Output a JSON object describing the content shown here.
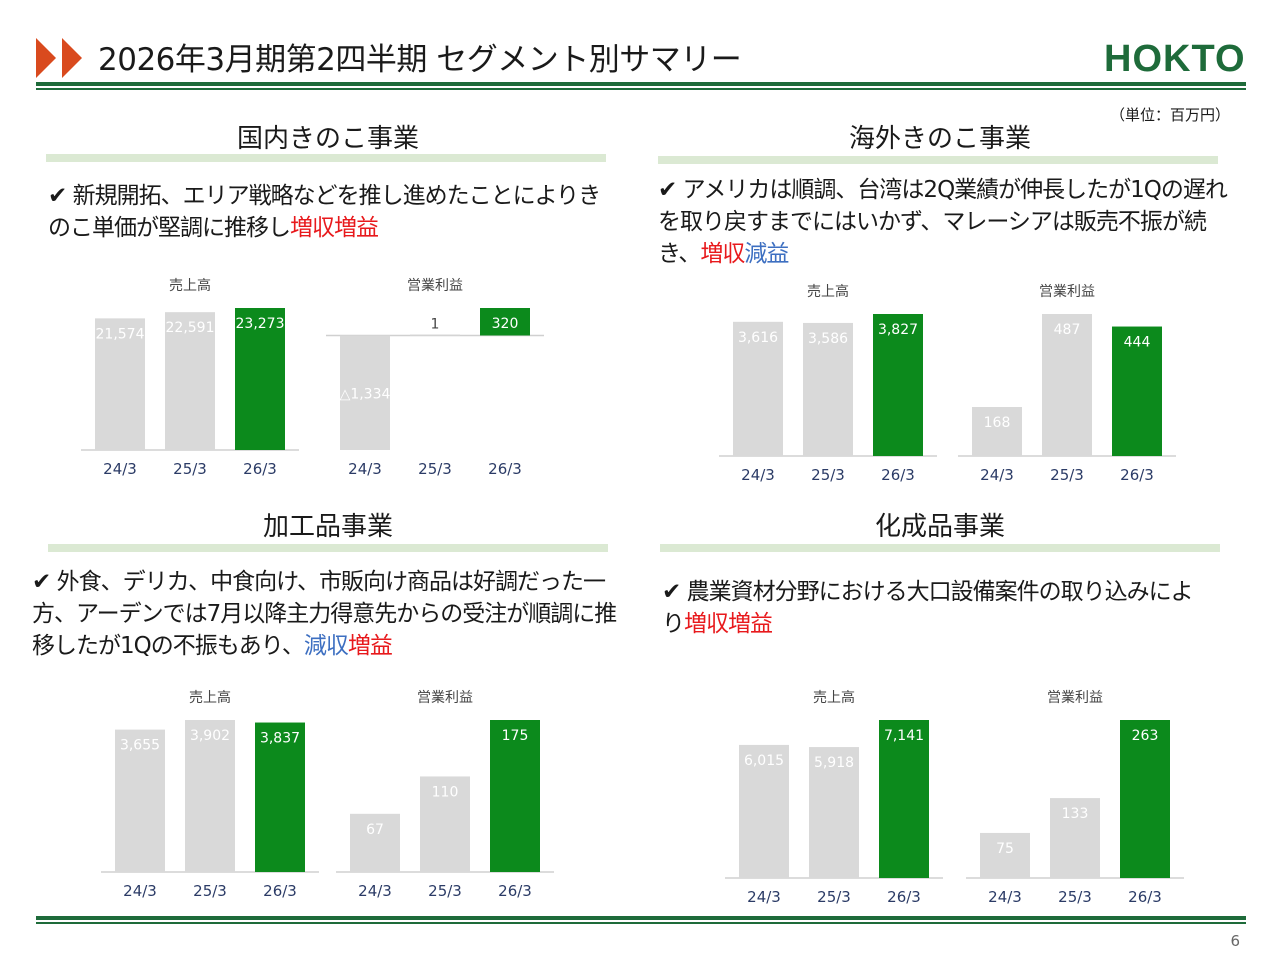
{
  "header": {
    "title": "2026年3月期第2四半期 セグメント別サマリー",
    "logo": "HOKTO",
    "unit": "（単位：百万円）",
    "page_number": "6"
  },
  "colors": {
    "accent_red": "#d94a1e",
    "brand_green": "#1e6b3a",
    "bar_highlight": "#0c8a1c",
    "bar_past": "#d9d9d9",
    "underline": "#dbe9d3",
    "text_red": "#e8191c",
    "text_blue": "#3d6fc1"
  },
  "segments": {
    "domestic": {
      "title": "国内きのこ事業",
      "desc_lead": "✔ 新規開拓、エリア戦略などを推し進めたことによりきのこ単価が堅調に推移し",
      "desc_a": "増収",
      "desc_b": "増益",
      "desc_tail": ""
    },
    "overseas": {
      "title": "海外きのこ事業",
      "desc_lead": "✔ アメリカは順調、台湾は2Q業績が伸長したが1Qの遅れを取り戻すまでにはいかず、マレーシアは販売不振が続き、",
      "desc_a": "増収",
      "desc_b": "減益",
      "desc_tail": ""
    },
    "processed": {
      "title": "加工品事業",
      "desc_lead": "✔ 外食、デリカ、中食向け、市販向け商品は好調だった一方、アーデンでは7月以降主力得意先からの受注が順調に推移したが1Qの不振もあり、",
      "desc_a": "減収",
      "desc_b": "増益",
      "desc_tail": ""
    },
    "chemical": {
      "title": "化成品事業",
      "desc_lead": "✔ 農業資材分野における大口設備案件の取り込みにより",
      "desc_a": "増収",
      "desc_b": "増益",
      "desc_tail": ""
    }
  },
  "chart_data": [
    {
      "id": "domestic-sales",
      "type": "bar",
      "title": "売上高",
      "categories": [
        "24/3",
        "25/3",
        "26/3"
      ],
      "values": [
        21574,
        22591,
        23273
      ],
      "labels": [
        "21,574",
        "22,591",
        "23,273"
      ],
      "ylim": [
        0,
        23273
      ]
    },
    {
      "id": "domestic-profit",
      "type": "bar",
      "title": "営業利益",
      "categories": [
        "24/3",
        "25/3",
        "26/3"
      ],
      "values": [
        -1334,
        1,
        320
      ],
      "labels": [
        "△1,334",
        "1",
        "320"
      ],
      "ylim": [
        -1334,
        320
      ]
    },
    {
      "id": "overseas-sales",
      "type": "bar",
      "title": "売上高",
      "categories": [
        "24/3",
        "25/3",
        "26/3"
      ],
      "values": [
        3616,
        3586,
        3827
      ],
      "labels": [
        "3,616",
        "3,586",
        "3,827"
      ],
      "ylim": [
        0,
        3827
      ]
    },
    {
      "id": "overseas-profit",
      "type": "bar",
      "title": "営業利益",
      "categories": [
        "24/3",
        "25/3",
        "26/3"
      ],
      "values": [
        168,
        487,
        444
      ],
      "labels": [
        "168",
        "487",
        "444"
      ],
      "ylim": [
        0,
        487
      ]
    },
    {
      "id": "processed-sales",
      "type": "bar",
      "title": "売上高",
      "categories": [
        "24/3",
        "25/3",
        "26/3"
      ],
      "values": [
        3655,
        3902,
        3837
      ],
      "labels": [
        "3,655",
        "3,902",
        "3,837"
      ],
      "ylim": [
        0,
        3902
      ]
    },
    {
      "id": "processed-profit",
      "type": "bar",
      "title": "営業利益",
      "categories": [
        "24/3",
        "25/3",
        "26/3"
      ],
      "values": [
        67,
        110,
        175
      ],
      "labels": [
        "67",
        "110",
        "175"
      ],
      "ylim": [
        0,
        175
      ]
    },
    {
      "id": "chemical-sales",
      "type": "bar",
      "title": "売上高",
      "categories": [
        "24/3",
        "25/3",
        "26/3"
      ],
      "values": [
        6015,
        5918,
        7141
      ],
      "labels": [
        "6,015",
        "5,918",
        "7,141"
      ],
      "ylim": [
        0,
        7141
      ]
    },
    {
      "id": "chemical-profit",
      "type": "bar",
      "title": "営業利益",
      "categories": [
        "24/3",
        "25/3",
        "26/3"
      ],
      "values": [
        75,
        133,
        263
      ],
      "labels": [
        "75",
        "133",
        "263"
      ],
      "ylim": [
        0,
        263
      ]
    }
  ]
}
